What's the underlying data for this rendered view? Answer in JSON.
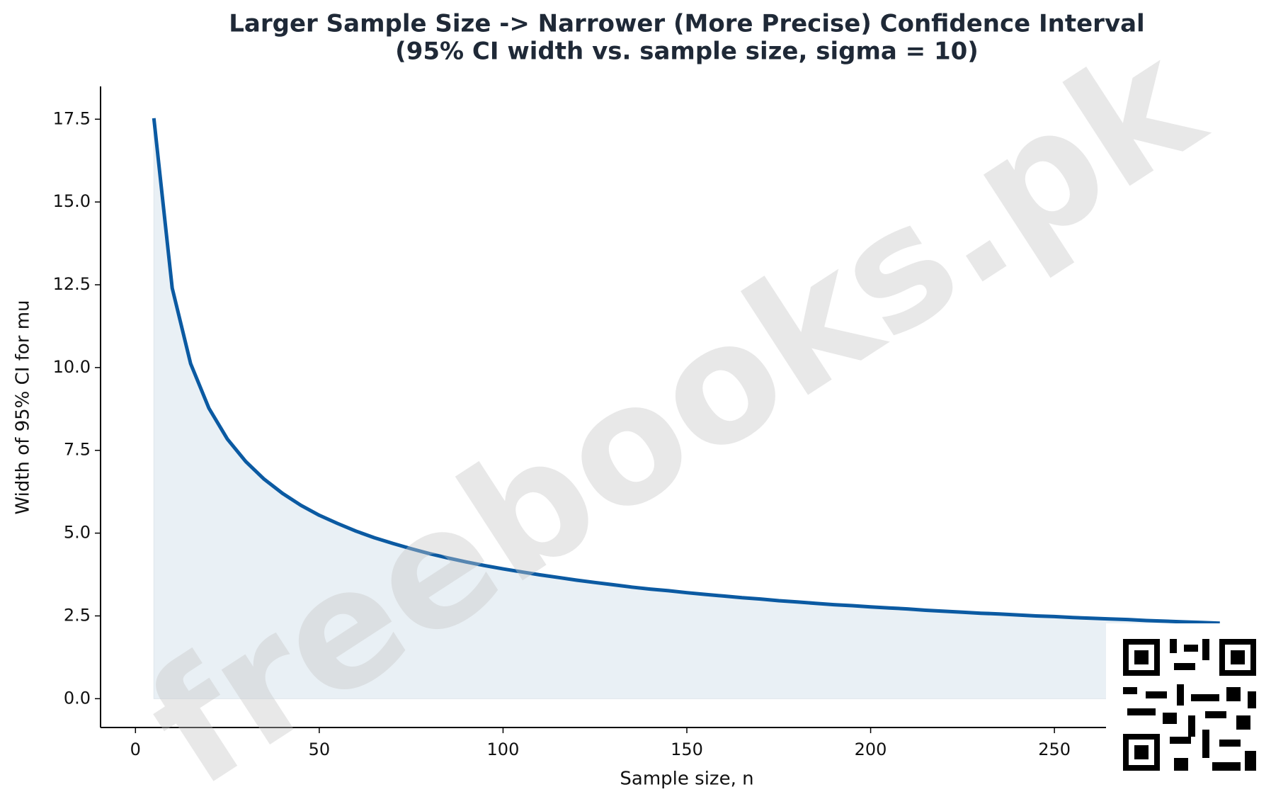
{
  "chart_data": {
    "type": "line",
    "title": "Larger Sample Size -> Narrower (More Precise) Confidence Interval",
    "subtitle": "(95% CI width vs. sample size, sigma = 10)",
    "x_label": "Sample size, n",
    "y_label": "Width of 95% CI for mu",
    "watermark": "freebooks.pk",
    "x": [
      5,
      10,
      15,
      20,
      25,
      30,
      35,
      40,
      45,
      50,
      55,
      60,
      65,
      70,
      75,
      80,
      85,
      90,
      95,
      100,
      105,
      110,
      115,
      120,
      125,
      130,
      135,
      140,
      145,
      150,
      155,
      160,
      165,
      170,
      175,
      180,
      185,
      190,
      195,
      200,
      205,
      210,
      215,
      220,
      225,
      230,
      235,
      240,
      245,
      250,
      255,
      260,
      265,
      270,
      275,
      280,
      285,
      290,
      295
    ],
    "series": [
      {
        "color": "#0b5aa2",
        "fill": "#e9f0f5",
        "values": [
          17.53,
          12.4,
          10.12,
          8.77,
          7.84,
          7.16,
          6.63,
          6.2,
          5.84,
          5.54,
          5.29,
          5.06,
          4.86,
          4.69,
          4.53,
          4.38,
          4.25,
          4.13,
          4.02,
          3.92,
          3.83,
          3.74,
          3.66,
          3.58,
          3.51,
          3.44,
          3.37,
          3.31,
          3.26,
          3.2,
          3.15,
          3.1,
          3.05,
          3.01,
          2.96,
          2.92,
          2.88,
          2.84,
          2.81,
          2.77,
          2.74,
          2.71,
          2.67,
          2.64,
          2.61,
          2.58,
          2.56,
          2.53,
          2.5,
          2.48,
          2.45,
          2.43,
          2.41,
          2.39,
          2.36,
          2.34,
          2.32,
          2.3,
          2.28
        ]
      }
    ],
    "xlim": [
      -9.5,
      309.5
    ],
    "ylim": [
      -0.87,
      18.49
    ],
    "xticks": [
      0,
      50,
      100,
      150,
      200,
      250
    ],
    "yticks": [
      {
        "value": 0,
        "label": "0.0"
      },
      2.5,
      {
        "value": 5,
        "label": "5.0"
      },
      7.5,
      {
        "value": 10,
        "label": "10.0"
      },
      12.5,
      {
        "value": 15,
        "label": "15.0"
      },
      17.5
    ]
  }
}
